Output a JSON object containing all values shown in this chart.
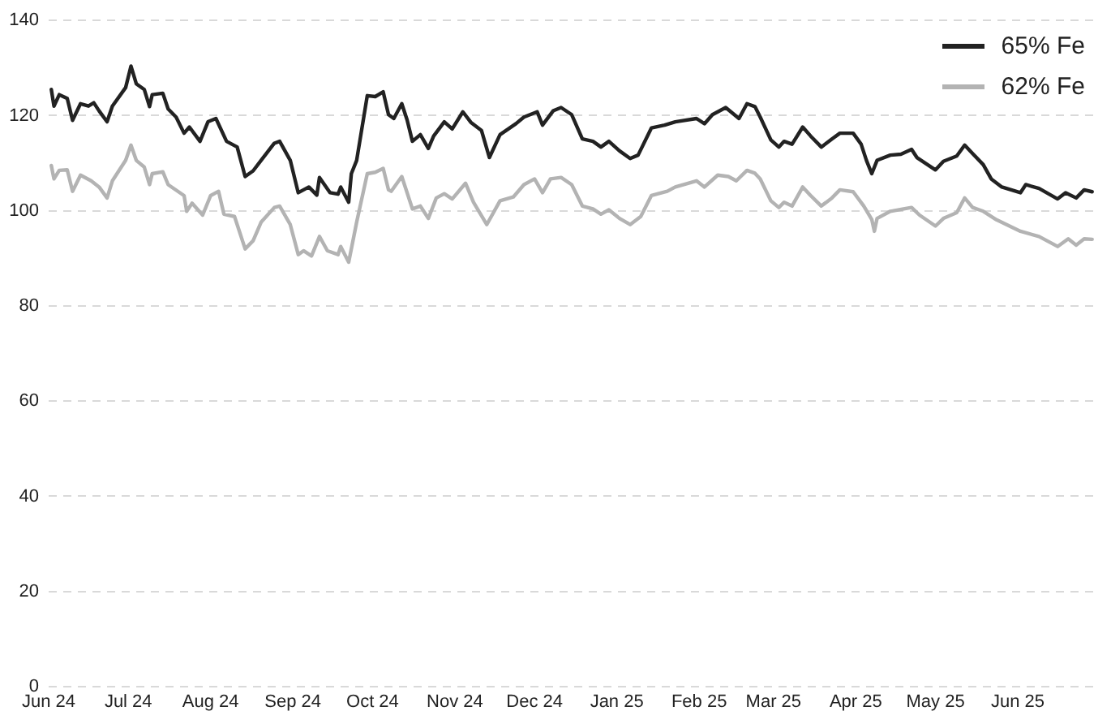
{
  "chart_data": {
    "type": "line",
    "xlim": [
      "2024-06-01",
      "2025-06-30"
    ],
    "xticks": [
      {
        "value": "2024-06-01",
        "label": "Jun 24"
      },
      {
        "value": "2024-07-01",
        "label": "Jul 24"
      },
      {
        "value": "2024-08-01",
        "label": "Aug 24"
      },
      {
        "value": "2024-09-01",
        "label": "Sep 24"
      },
      {
        "value": "2024-10-01",
        "label": "Oct 24"
      },
      {
        "value": "2024-11-01",
        "label": "Nov 24"
      },
      {
        "value": "2024-12-01",
        "label": "Dec 24"
      },
      {
        "value": "2025-01-01",
        "label": "Jan 25"
      },
      {
        "value": "2025-02-01",
        "label": "Feb 25"
      },
      {
        "value": "2025-03-01",
        "label": "Mar 25"
      },
      {
        "value": "2025-04-01",
        "label": "Apr 25"
      },
      {
        "value": "2025-05-01",
        "label": "May 25"
      },
      {
        "value": "2025-06-01",
        "label": "Jun 25"
      }
    ],
    "ylim": [
      0,
      140
    ],
    "yticks": [
      0,
      20,
      40,
      60,
      80,
      100,
      120,
      140
    ],
    "grid": "y",
    "legend": "top right",
    "marker": "none",
    "line_style": "solid",
    "series": [
      {
        "name": "65% Fe",
        "color": "#222222",
        "x": [
          "2024-06-02",
          "2024-06-03",
          "2024-06-05",
          "2024-06-08",
          "2024-06-10",
          "2024-06-13",
          "2024-06-16",
          "2024-06-18",
          "2024-06-20",
          "2024-06-23",
          "2024-06-25",
          "2024-06-30",
          "2024-07-02",
          "2024-07-04",
          "2024-07-07",
          "2024-07-09",
          "2024-07-10",
          "2024-07-14",
          "2024-07-16",
          "2024-07-19",
          "2024-07-22",
          "2024-07-24",
          "2024-07-28",
          "2024-07-31",
          "2024-08-03",
          "2024-08-07",
          "2024-08-11",
          "2024-08-14",
          "2024-08-17",
          "2024-08-20",
          "2024-08-25",
          "2024-08-27",
          "2024-08-31",
          "2024-09-03",
          "2024-09-07",
          "2024-09-10",
          "2024-09-11",
          "2024-09-15",
          "2024-09-18",
          "2024-09-19",
          "2024-09-22",
          "2024-09-23",
          "2024-09-25",
          "2024-09-29",
          "2024-10-02",
          "2024-10-05",
          "2024-10-07",
          "2024-10-09",
          "2024-10-12",
          "2024-10-14",
          "2024-10-16",
          "2024-10-19",
          "2024-10-22",
          "2024-10-24",
          "2024-10-28",
          "2024-10-31",
          "2024-11-04",
          "2024-11-07",
          "2024-11-11",
          "2024-11-14",
          "2024-11-18",
          "2024-11-24",
          "2024-11-27",
          "2024-12-02",
          "2024-12-04",
          "2024-12-08",
          "2024-12-11",
          "2024-12-15",
          "2024-12-19",
          "2024-12-23",
          "2024-12-26",
          "2024-12-29",
          "2025-01-02",
          "2025-01-06",
          "2025-01-09",
          "2025-01-14",
          "2025-01-19",
          "2025-01-23",
          "2025-01-31",
          "2025-02-03",
          "2025-02-06",
          "2025-02-11",
          "2025-02-16",
          "2025-02-19",
          "2025-02-22",
          "2025-02-24",
          "2025-02-28",
          "2025-03-03",
          "2025-03-05",
          "2025-03-08",
          "2025-03-12",
          "2025-03-15",
          "2025-03-19",
          "2025-03-23",
          "2025-03-26",
          "2025-03-31",
          "2025-04-03",
          "2025-04-05",
          "2025-04-07",
          "2025-04-09",
          "2025-04-14",
          "2025-04-18",
          "2025-04-22",
          "2025-04-24",
          "2025-05-01",
          "2025-05-04",
          "2025-05-09",
          "2025-05-12",
          "2025-05-15",
          "2025-05-19",
          "2025-05-22",
          "2025-05-26",
          "2025-06-02",
          "2025-06-04",
          "2025-06-09",
          "2025-06-16",
          "2025-06-19",
          "2025-06-23",
          "2025-06-26",
          "2025-06-29"
        ],
        "values": [
          125.5,
          122,
          124.4,
          123.6,
          119,
          122.5,
          122,
          122.7,
          121,
          118.7,
          122,
          125.9,
          130.4,
          126.7,
          125.5,
          121.9,
          124.4,
          124.7,
          121.4,
          119.7,
          116.3,
          117.6,
          114.6,
          118.7,
          119.4,
          114.6,
          113.4,
          107.2,
          108.4,
          110.6,
          114.2,
          114.6,
          110.6,
          103.8,
          105,
          103.3,
          107,
          103.8,
          103.5,
          105,
          101.8,
          107.8,
          110.6,
          124.2,
          124,
          125,
          120.2,
          119.4,
          122.5,
          119.1,
          114.6,
          116,
          113.1,
          115.7,
          118.7,
          117.2,
          120.8,
          118.6,
          116.9,
          111.2,
          116,
          118.3,
          119.7,
          120.8,
          118,
          121,
          121.7,
          120.2,
          115.1,
          114.6,
          113.4,
          114.6,
          112.6,
          111,
          111.7,
          117.4,
          118,
          118.7,
          119.4,
          118.3,
          120.2,
          121.7,
          119.4,
          122.5,
          121.9,
          119.7,
          114.9,
          113.4,
          114.6,
          114,
          117.6,
          115.7,
          113.4,
          115.1,
          116.3,
          116.3,
          114,
          110.6,
          107.8,
          110.6,
          111.7,
          111.9,
          112.9,
          111.2,
          108.6,
          110.4,
          111.5,
          113.8,
          112,
          109.7,
          106.7,
          105,
          103.8,
          105.5,
          104.7,
          102.5,
          103.8,
          102.7,
          104.4,
          104
        ]
      },
      {
        "name": "62% Fe",
        "color": "#b3b3b3",
        "x": [
          "2024-06-02",
          "2024-06-03",
          "2024-06-05",
          "2024-06-08",
          "2024-06-10",
          "2024-06-13",
          "2024-06-17",
          "2024-06-20",
          "2024-06-23",
          "2024-06-25",
          "2024-06-30",
          "2024-07-02",
          "2024-07-04",
          "2024-07-07",
          "2024-07-09",
          "2024-07-10",
          "2024-07-14",
          "2024-07-16",
          "2024-07-22",
          "2024-07-23",
          "2024-07-25",
          "2024-07-29",
          "2024-08-01",
          "2024-08-04",
          "2024-08-06",
          "2024-08-10",
          "2024-08-14",
          "2024-08-17",
          "2024-08-20",
          "2024-08-25",
          "2024-08-27",
          "2024-08-31",
          "2024-09-03",
          "2024-09-05",
          "2024-09-08",
          "2024-09-11",
          "2024-09-14",
          "2024-09-18",
          "2024-09-19",
          "2024-09-22",
          "2024-09-24",
          "2024-09-25",
          "2024-09-29",
          "2024-10-02",
          "2024-10-05",
          "2024-10-07",
          "2024-10-08",
          "2024-10-12",
          "2024-10-16",
          "2024-10-19",
          "2024-10-22",
          "2024-10-25",
          "2024-10-28",
          "2024-10-31",
          "2024-11-05",
          "2024-11-08",
          "2024-11-13",
          "2024-11-18",
          "2024-11-23",
          "2024-11-27",
          "2024-12-01",
          "2024-12-04",
          "2024-12-07",
          "2024-12-11",
          "2024-12-15",
          "2024-12-19",
          "2024-12-23",
          "2024-12-26",
          "2024-12-29",
          "2025-01-02",
          "2025-01-06",
          "2025-01-10",
          "2025-01-14",
          "2025-01-20",
          "2025-01-23",
          "2025-01-31",
          "2025-02-03",
          "2025-02-08",
          "2025-02-12",
          "2025-02-15",
          "2025-02-19",
          "2025-02-22",
          "2025-02-24",
          "2025-02-28",
          "2025-03-03",
          "2025-03-05",
          "2025-03-08",
          "2025-03-12",
          "2025-03-15",
          "2025-03-19",
          "2025-03-23",
          "2025-03-26",
          "2025-03-31",
          "2025-04-04",
          "2025-04-07",
          "2025-04-08",
          "2025-04-09",
          "2025-04-14",
          "2025-04-22",
          "2025-04-25",
          "2025-05-01",
          "2025-05-04",
          "2025-05-09",
          "2025-05-12",
          "2025-05-15",
          "2025-05-19",
          "2025-05-24",
          "2025-06-02",
          "2025-06-09",
          "2025-06-16",
          "2025-06-20",
          "2025-06-23",
          "2025-06-26",
          "2025-06-29"
        ],
        "values": [
          109.5,
          106.7,
          108.5,
          108.6,
          104.1,
          107.5,
          106.3,
          105,
          102.7,
          106.3,
          110.6,
          113.8,
          110.6,
          109.2,
          105.5,
          107.8,
          108.2,
          105.5,
          103.2,
          99.9,
          101.6,
          99.1,
          103.2,
          104.1,
          99.3,
          98.8,
          92,
          93.7,
          97.6,
          100.7,
          101,
          97.1,
          90.8,
          91.6,
          90.5,
          94.6,
          91.6,
          90.8,
          92.5,
          89.2,
          94.8,
          97.6,
          107.8,
          108.1,
          108.9,
          104.4,
          104.1,
          107.2,
          100.4,
          101,
          98.4,
          102.7,
          103.6,
          102.5,
          105.8,
          101.8,
          97.1,
          102.1,
          102.9,
          105.5,
          106.7,
          103.8,
          106.7,
          107,
          105.5,
          101,
          100.4,
          99.3,
          100.2,
          98.4,
          97.1,
          98.8,
          103.2,
          104.1,
          105,
          106.3,
          105,
          107.5,
          107.2,
          106.3,
          108.5,
          107.9,
          106.7,
          102.1,
          100.7,
          101.8,
          101,
          105,
          103.2,
          101,
          102.7,
          104.4,
          104,
          101,
          98.2,
          95.7,
          98.4,
          99.9,
          100.7,
          99.1,
          96.8,
          98.4,
          99.6,
          102.7,
          100.7,
          99.9,
          98.1,
          95.7,
          94.6,
          92.5,
          94.1,
          92.8,
          94.1,
          94
        ]
      }
    ]
  }
}
